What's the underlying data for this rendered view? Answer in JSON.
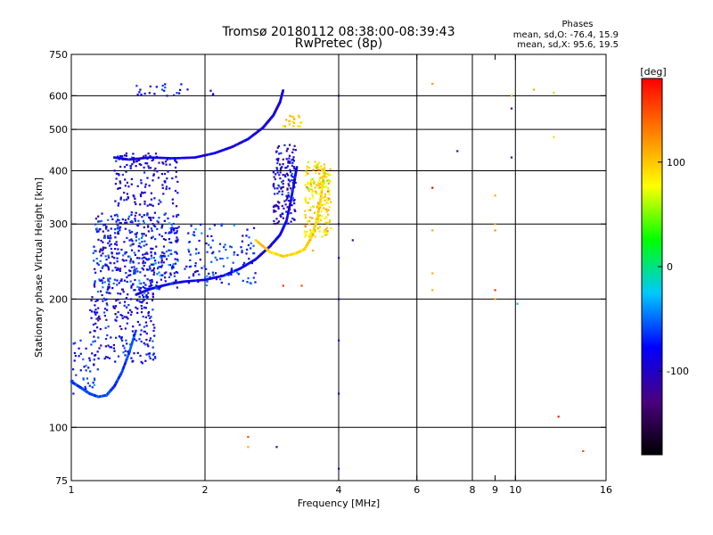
{
  "chart_data": {
    "type": "scatter",
    "title": "Tromsø 20180112 08:38:00-08:39:43",
    "subtitle": "RwPretec (8p)",
    "xlabel": "Frequency [MHz]",
    "ylabel": "Stationary phase Virtual Height [km]",
    "x_scale": "log",
    "y_scale": "log",
    "xlim": [
      1,
      16
    ],
    "ylim": [
      75,
      750
    ],
    "x_ticks": [
      1,
      2,
      4,
      6,
      8,
      9,
      10,
      16
    ],
    "x_tick_labels": [
      "1",
      "2",
      "4",
      "6",
      "8",
      "9",
      "10",
      "16"
    ],
    "x_gridlines": [
      2,
      4,
      6,
      8,
      10
    ],
    "y_ticks": [
      75,
      100,
      200,
      300,
      400,
      500,
      600,
      750
    ],
    "y_tick_labels": [
      "75",
      "100",
      "200",
      "300",
      "400",
      "500",
      "600",
      "750"
    ],
    "y_gridlines": [
      100,
      200,
      300,
      400,
      500,
      600
    ],
    "grid": true,
    "phase_legend": {
      "title": "Phases",
      "line1": "mean, sd,O: -76.4, 15.9",
      "line2": "mean, sd,X:  95.6, 19.5"
    },
    "colorbar": {
      "label": "[deg]",
      "ticks": [
        -100,
        0,
        100
      ],
      "tick_labels": [
        "-100",
        "0",
        "100"
      ],
      "range": [
        -180,
        180
      ],
      "colors": [
        "#000000",
        "#4a0080",
        "#0000ff",
        "#00c8ff",
        "#00ff00",
        "#ffff00",
        "#ff8000",
        "#ff0000"
      ]
    },
    "traces": [
      {
        "name": "O-lower",
        "phase": -85,
        "points": [
          [
            1.4,
            205
          ],
          [
            1.5,
            211
          ],
          [
            1.6,
            215
          ],
          [
            1.7,
            218
          ],
          [
            1.8,
            220
          ],
          [
            2.0,
            222
          ],
          [
            2.2,
            227
          ],
          [
            2.4,
            236
          ],
          [
            2.6,
            248
          ],
          [
            2.8,
            266
          ],
          [
            2.95,
            283
          ],
          [
            3.05,
            305
          ],
          [
            3.12,
            340
          ],
          [
            3.18,
            380
          ],
          [
            3.22,
            410
          ]
        ]
      },
      {
        "name": "O-upper",
        "phase": -90,
        "points": [
          [
            1.25,
            430
          ],
          [
            1.35,
            425
          ],
          [
            1.5,
            430
          ],
          [
            1.7,
            428
          ],
          [
            1.9,
            430
          ],
          [
            2.1,
            440
          ],
          [
            2.3,
            455
          ],
          [
            2.5,
            475
          ],
          [
            2.7,
            505
          ],
          [
            2.85,
            540
          ],
          [
            2.95,
            580
          ],
          [
            3.0,
            620
          ]
        ]
      },
      {
        "name": "X-trace",
        "phase": 95,
        "points": [
          [
            2.6,
            275
          ],
          [
            2.8,
            258
          ],
          [
            3.0,
            252
          ],
          [
            3.2,
            256
          ],
          [
            3.35,
            262
          ],
          [
            3.45,
            276
          ],
          [
            3.55,
            300
          ],
          [
            3.62,
            330
          ],
          [
            3.68,
            370
          ],
          [
            3.72,
            410
          ]
        ]
      },
      {
        "name": "low-band",
        "phase": -60,
        "points": [
          [
            1.0,
            128
          ],
          [
            1.05,
            124
          ],
          [
            1.1,
            120
          ],
          [
            1.15,
            118
          ],
          [
            1.2,
            119
          ],
          [
            1.25,
            125
          ],
          [
            1.3,
            135
          ],
          [
            1.35,
            150
          ],
          [
            1.4,
            170
          ]
        ]
      }
    ],
    "clouds": [
      {
        "x": [
          1.12,
          1.75
        ],
        "y": [
          210,
          320
        ],
        "n": 480,
        "phase": -80,
        "sd": 22
      },
      {
        "x": [
          1.1,
          1.55
        ],
        "y": [
          140,
          210
        ],
        "n": 220,
        "phase": -85,
        "sd": 20
      },
      {
        "x": [
          1.25,
          1.75
        ],
        "y": [
          330,
          440
        ],
        "n": 150,
        "phase": -90,
        "sd": 15
      },
      {
        "x": [
          1.8,
          2.6
        ],
        "y": [
          215,
          300
        ],
        "n": 120,
        "phase": -70,
        "sd": 18
      },
      {
        "x": [
          2.85,
          3.2
        ],
        "y": [
          300,
          460
        ],
        "n": 160,
        "phase": -95,
        "sd": 20
      },
      {
        "x": [
          3.35,
          3.85
        ],
        "y": [
          280,
          420
        ],
        "n": 200,
        "phase": 90,
        "sd": 18
      },
      {
        "x": [
          1.0,
          1.15
        ],
        "y": [
          120,
          160
        ],
        "n": 40,
        "phase": -70,
        "sd": 15
      },
      {
        "x": [
          1.4,
          2.1
        ],
        "y": [
          600,
          640
        ],
        "n": 25,
        "phase": -80,
        "sd": 10
      },
      {
        "x": [
          3.0,
          3.3
        ],
        "y": [
          500,
          540
        ],
        "n": 20,
        "phase": 100,
        "sd": 10
      }
    ],
    "scatter": [
      [
        4.0,
        300,
        -110
      ],
      [
        4.0,
        250,
        -110
      ],
      [
        4.0,
        200,
        -110
      ],
      [
        4.0,
        160,
        -110
      ],
      [
        4.0,
        120,
        -110
      ],
      [
        4.0,
        80,
        -110
      ],
      [
        4.0,
        600,
        -110
      ],
      [
        6.5,
        365,
        180
      ],
      [
        6.5,
        290,
        110
      ],
      [
        6.5,
        230,
        110
      ],
      [
        6.5,
        210,
        110
      ],
      [
        6.5,
        640,
        120
      ],
      [
        7.4,
        445,
        -120
      ],
      [
        9.0,
        210,
        160
      ],
      [
        9.0,
        200,
        110
      ],
      [
        9.0,
        350,
        110
      ],
      [
        9.0,
        300,
        110
      ],
      [
        9.0,
        290,
        120
      ],
      [
        9.8,
        560,
        -130
      ],
      [
        9.8,
        430,
        -130
      ],
      [
        9.8,
        600,
        110
      ],
      [
        10.1,
        195,
        -30
      ],
      [
        11.0,
        620,
        110
      ],
      [
        12.2,
        480,
        90
      ],
      [
        12.2,
        610,
        60
      ],
      [
        12.5,
        106,
        170
      ],
      [
        14.2,
        88,
        150
      ],
      [
        2.5,
        95,
        150
      ],
      [
        2.5,
        90,
        110
      ],
      [
        2.9,
        90,
        -120
      ],
      [
        3.0,
        215,
        160
      ],
      [
        3.3,
        215,
        150
      ],
      [
        3.5,
        260,
        110
      ],
      [
        4.3,
        275,
        -120
      ]
    ]
  }
}
